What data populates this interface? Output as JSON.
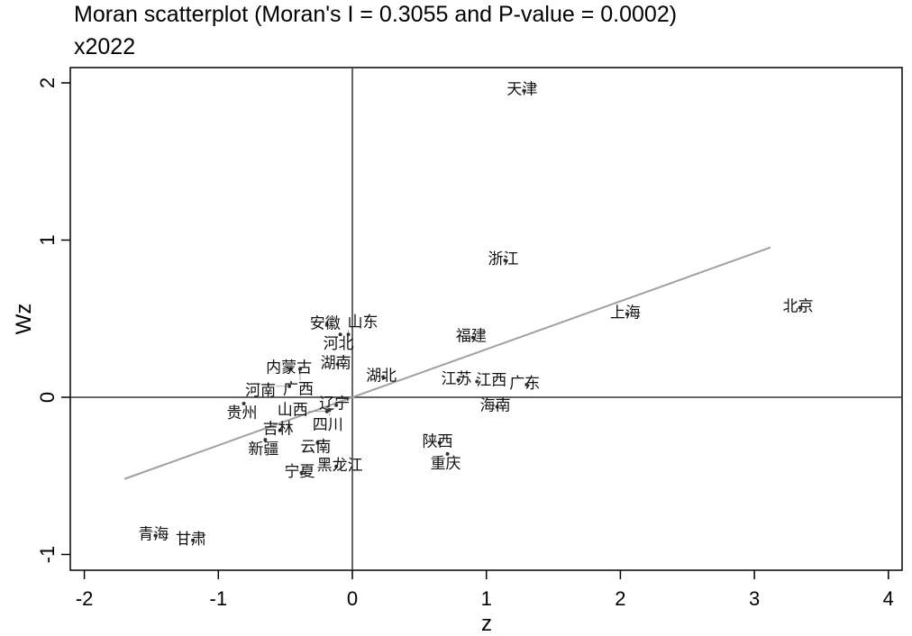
{
  "chart_data": {
    "type": "scatter",
    "title": "Moran scatterplot (Moran's I = 0.3055 and P-value = 0.0002)",
    "subtitle": "x2022",
    "xlabel": "z",
    "ylabel": "Wz",
    "xlim": [
      -2.05,
      4.1
    ],
    "ylim": [
      -1.1,
      2.1
    ],
    "xticks": [
      -2,
      -1,
      0,
      1,
      2,
      3,
      4
    ],
    "yticks": [
      -1,
      0,
      1,
      2
    ],
    "fit_line": {
      "x": [
        -1.7,
        3.12
      ],
      "slope": 0.3055,
      "color": "#a0a0a0"
    },
    "points": [
      {
        "label": "天津",
        "x": 1.28,
        "y": 1.95
      },
      {
        "label": "浙江",
        "x": 1.14,
        "y": 0.87
      },
      {
        "label": "北京",
        "x": 3.34,
        "y": 0.57
      },
      {
        "label": "上海",
        "x": 2.05,
        "y": 0.53
      },
      {
        "label": "福建",
        "x": 0.9,
        "y": 0.38
      },
      {
        "label": "安徽",
        "x": -0.19,
        "y": 0.46
      },
      {
        "label": "河北",
        "x": -0.09,
        "y": 0.4
      },
      {
        "label": "山东",
        "x": -0.03,
        "y": 0.4
      },
      {
        "label": "湖南",
        "x": -0.11,
        "y": 0.21
      },
      {
        "label": "内蒙古",
        "x": -0.46,
        "y": 0.18
      },
      {
        "label": "广西",
        "x": -0.39,
        "y": 0.18
      },
      {
        "label": "湖北",
        "x": 0.23,
        "y": 0.13
      },
      {
        "label": "河南",
        "x": -0.47,
        "y": 0.07
      },
      {
        "label": "江苏",
        "x": 0.79,
        "y": 0.11
      },
      {
        "label": "江西",
        "x": 0.93,
        "y": 0.1
      },
      {
        "label": "广东",
        "x": 1.3,
        "y": 0.08
      },
      {
        "label": "贵州",
        "x": -0.81,
        "y": -0.04
      },
      {
        "label": "海南",
        "x": 1.08,
        "y": -0.06
      },
      {
        "label": "辽宁",
        "x": -0.12,
        "y": -0.05
      },
      {
        "label": "四川",
        "x": -0.17,
        "y": -0.08
      },
      {
        "label": "山西",
        "x": -0.19,
        "y": -0.09
      },
      {
        "label": "吉林",
        "x": -0.54,
        "y": -0.21
      },
      {
        "label": "新疆",
        "x": -0.65,
        "y": -0.27
      },
      {
        "label": "云南",
        "x": -0.26,
        "y": -0.29
      },
      {
        "label": "陕西",
        "x": 0.65,
        "y": -0.29
      },
      {
        "label": "重庆",
        "x": 0.71,
        "y": -0.36
      },
      {
        "label": "宁夏",
        "x": -0.38,
        "y": -0.48
      },
      {
        "label": "黑龙江",
        "x": -0.12,
        "y": -0.44
      },
      {
        "label": "青海",
        "x": -1.47,
        "y": -0.88
      },
      {
        "label": "甘肃",
        "x": -1.19,
        "y": -0.91
      }
    ]
  }
}
